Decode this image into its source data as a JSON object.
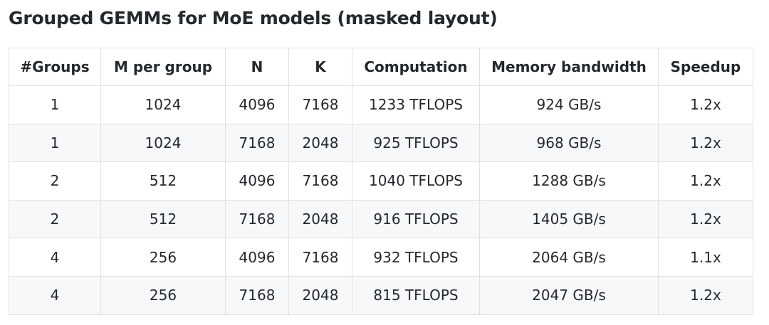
{
  "header": {
    "title": "Grouped GEMMs for MoE models (masked layout)"
  },
  "table": {
    "columns": [
      "#Groups",
      "M per group",
      "N",
      "K",
      "Computation",
      "Memory bandwidth",
      "Speedup"
    ],
    "rows": [
      [
        "1",
        "1024",
        "4096",
        "7168",
        "1233 TFLOPS",
        "924 GB/s",
        "1.2x"
      ],
      [
        "1",
        "1024",
        "7168",
        "2048",
        "925 TFLOPS",
        "968 GB/s",
        "1.2x"
      ],
      [
        "2",
        "512",
        "4096",
        "7168",
        "1040 TFLOPS",
        "1288 GB/s",
        "1.2x"
      ],
      [
        "2",
        "512",
        "7168",
        "2048",
        "916 TFLOPS",
        "1405 GB/s",
        "1.2x"
      ],
      [
        "4",
        "256",
        "4096",
        "7168",
        "932 TFLOPS",
        "2064 GB/s",
        "1.1x"
      ],
      [
        "4",
        "256",
        "7168",
        "2048",
        "815 TFLOPS",
        "2047 GB/s",
        "1.2x"
      ]
    ]
  }
}
